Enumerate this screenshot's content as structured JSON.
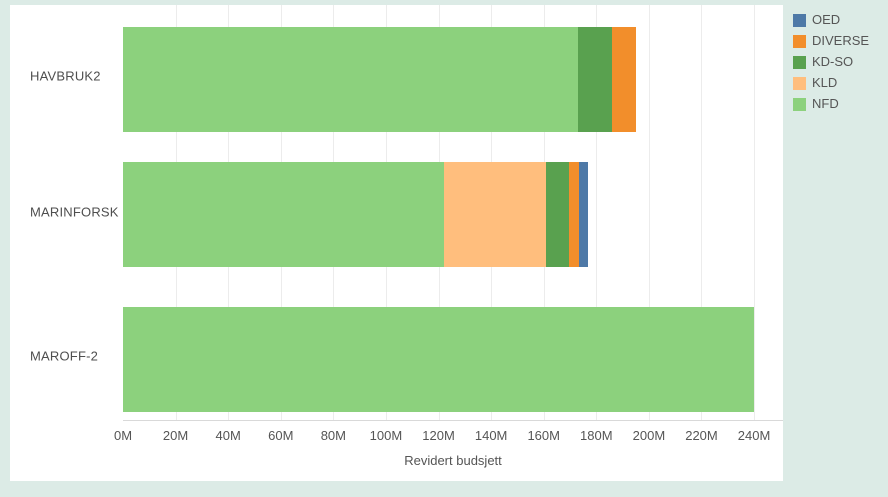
{
  "colors": {
    "background": "#dcebe6",
    "panel": "#ffffff",
    "grid": "#ececec",
    "axis_line": "#d9d9d9",
    "text": "#555555",
    "row_label_text": "#4e4e4e"
  },
  "chart_data": {
    "type": "bar",
    "orientation": "horizontal",
    "stacked": true,
    "title": "",
    "xlabel": "Revidert budsjett",
    "ylabel": "",
    "categories": [
      "HAVBRUK2",
      "MARINFORSK",
      "MAROFF-2"
    ],
    "series": [
      {
        "name": "NFD",
        "color": "#8CD17D",
        "values": [
          173,
          122,
          240
        ]
      },
      {
        "name": "KLD",
        "color": "#FFBE7D",
        "values": [
          0,
          39,
          0
        ]
      },
      {
        "name": "KD-SO",
        "color": "#59A14F",
        "values": [
          13,
          8.5,
          0
        ]
      },
      {
        "name": "DIVERSE",
        "color": "#F28E2B",
        "values": [
          9,
          4,
          0
        ]
      },
      {
        "name": "OED",
        "color": "#4E79A7",
        "values": [
          0,
          3.5,
          0
        ]
      }
    ],
    "totals": [
      195,
      177,
      240
    ],
    "xlim": [
      0,
      251
    ],
    "xtick_step": 20,
    "xticks": [
      "0M",
      "20M",
      "40M",
      "60M",
      "80M",
      "100M",
      "120M",
      "140M",
      "160M",
      "180M",
      "200M",
      "220M",
      "240M"
    ],
    "grid": true,
    "legend_position": "top-right"
  },
  "legend": {
    "items": [
      {
        "label": "OED",
        "color": "#4E79A7"
      },
      {
        "label": "DIVERSE",
        "color": "#F28E2B"
      },
      {
        "label": "KD-SO",
        "color": "#59A14F"
      },
      {
        "label": "KLD",
        "color": "#FFBE7D"
      },
      {
        "label": "NFD",
        "color": "#8CD17D"
      }
    ]
  }
}
